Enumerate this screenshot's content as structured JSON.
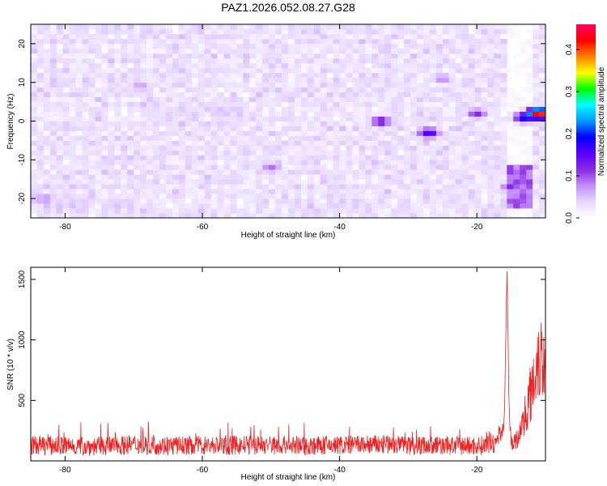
{
  "title": "PAZ1.2026.052.08.27.G28",
  "chart_data": [
    {
      "type": "heatmap",
      "title": "PAZ1.2026.052.08.27.G28",
      "xlabel": "Height of straight line (km)",
      "ylabel": "Frequency (Hz)",
      "xlim": [
        -85,
        -10
      ],
      "ylim": [
        -25,
        25
      ],
      "xticks": [
        "-80",
        "-60",
        "-40",
        "-20"
      ],
      "yticks": [
        "20",
        "10",
        "0",
        "-10",
        "-20"
      ],
      "colorbar": {
        "label": "Normalized spectral amplitude",
        "range": [
          0,
          0.46
        ],
        "ticks": [
          "0.0",
          "0.1",
          "0.2",
          "0.3",
          "0.4"
        ],
        "colors": [
          "#ffffff",
          "#e6d6ff",
          "#c28cff",
          "#8a2be2",
          "#5a00ff",
          "#0000ff",
          "#0099ff",
          "#00ffff",
          "#00ff00",
          "#ffff00",
          "#ff8000",
          "#ff0000",
          "#ff0066"
        ]
      },
      "hotspots": [
        {
          "x": -11,
          "y": 2,
          "value": 0.46
        },
        {
          "x": -13,
          "y": 1,
          "value": 0.2
        },
        {
          "x": -20,
          "y": 2,
          "value": 0.12
        },
        {
          "x": -27,
          "y": -3,
          "value": 0.17
        },
        {
          "x": -34,
          "y": 0,
          "value": 0.14
        },
        {
          "x": -15,
          "y": -17,
          "value": 0.12
        },
        {
          "x": -50,
          "y": -12,
          "value": 0.09
        },
        {
          "x": -25,
          "y": 11,
          "value": 0.08
        },
        {
          "x": -83,
          "y": -20,
          "value": 0.08
        },
        {
          "x": -69,
          "y": 9,
          "value": 0.07
        }
      ]
    },
    {
      "type": "line",
      "xlabel": "Height of straight line (km)",
      "ylabel": "SNR (10 * v/v)",
      "xlim": [
        -85,
        -10
      ],
      "ylim": [
        0,
        1600
      ],
      "xticks": [
        "-80",
        "-60",
        "-40",
        "-20"
      ],
      "yticks": [
        "500",
        "1000",
        "1500"
      ],
      "color": "#ee2222",
      "baseline_mean": 120,
      "baseline_spread": 80,
      "series": [
        {
          "values": [
            [
              -85,
              130
            ],
            [
              -80,
              125
            ],
            [
              -75,
              120
            ],
            [
              -70,
              135
            ],
            [
              -65,
              125
            ],
            [
              -60,
              130
            ],
            [
              -55,
              128
            ],
            [
              -50,
              132
            ],
            [
              -45,
              125
            ],
            [
              -40,
              130
            ],
            [
              -35,
              135
            ],
            [
              -30,
              130
            ],
            [
              -25,
              128
            ],
            [
              -20,
              125
            ],
            [
              -17.5,
              135
            ],
            [
              -16.0,
              300
            ],
            [
              -15.6,
              1600
            ],
            [
              -15.3,
              400
            ],
            [
              -15.0,
              150
            ],
            [
              -14.0,
              180
            ],
            [
              -13.0,
              380
            ],
            [
              -12.0,
              600
            ],
            [
              -11.0,
              900
            ],
            [
              -10.5,
              850
            ],
            [
              -10.0,
              800
            ]
          ]
        }
      ]
    }
  ]
}
